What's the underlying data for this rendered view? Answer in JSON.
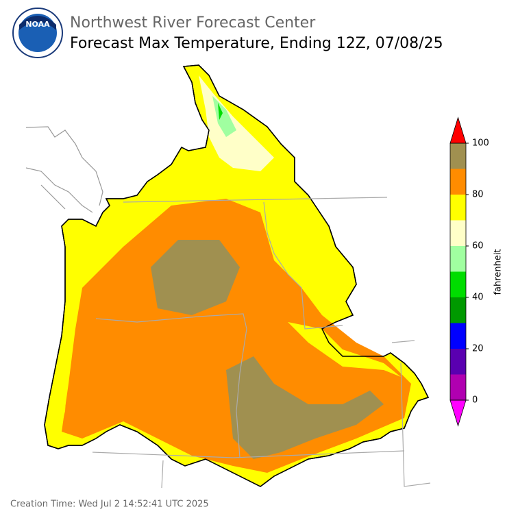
{
  "header": {
    "agency": "Northwest River Forecast Center",
    "title": "Forecast Max Temperature, Ending 12Z, 07/08/25",
    "logo_text": "NOAA"
  },
  "colorbar": {
    "label": "fahrenheit",
    "ticks": [
      0,
      20,
      40,
      60,
      80,
      100
    ],
    "bins": [
      0,
      10,
      20,
      30,
      40,
      50,
      60,
      70,
      80,
      90,
      100
    ],
    "colors": [
      "#b000b0",
      "#5a00b0",
      "#0000ff",
      "#009900",
      "#00dd00",
      "#a0ffa0",
      "#ffffc8",
      "#ffff00",
      "#ff8c00",
      "#a09050"
    ],
    "under_color": "#ff00ff",
    "over_color": "#ff0000"
  },
  "footer": {
    "creation_time": "Creation Time: Wed Jul 2 14:52:41 UTC 2025"
  }
}
